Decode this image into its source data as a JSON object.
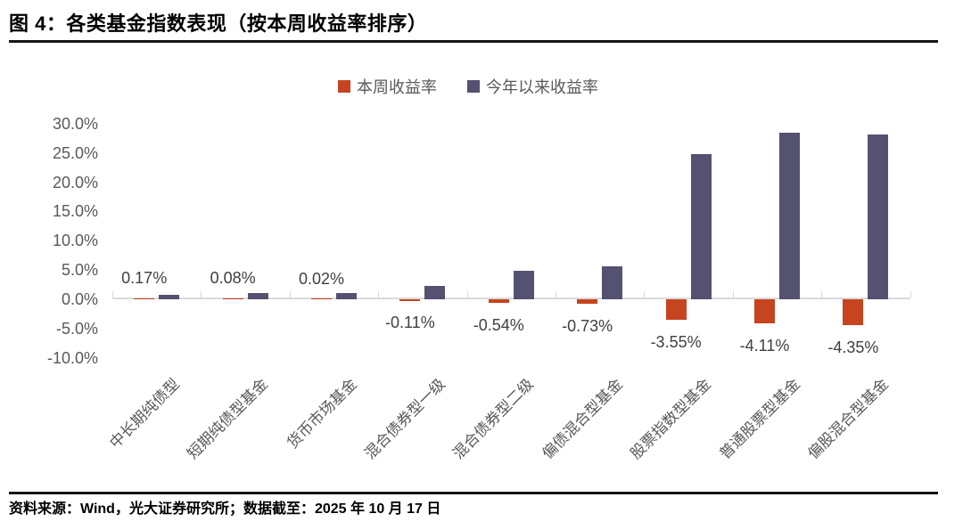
{
  "figure": {
    "title": "图 4：各类基金指数表现（按本周收益率排序）",
    "source_note": "资料来源：Wind，光大证券研究所；数据截至：2025 年 10 月 17 日"
  },
  "legend": {
    "position": "top-center",
    "items": [
      {
        "label": "本周收益率",
        "color": "#C6441F"
      },
      {
        "label": "今年以来收益率",
        "color": "#555171"
      }
    ]
  },
  "chart_data": {
    "type": "bar",
    "title": "各类基金指数表现（按本周收益率排序）",
    "categories": [
      "中长期纯债型",
      "短期纯债型基金",
      "货币市场基金",
      "混合债券型一级",
      "混合债券型二级",
      "偏债混合型基金",
      "股票指数型基金",
      "普通股票型基金",
      "偏股混合型基金"
    ],
    "series": [
      {
        "name": "本周收益率",
        "color": "#C6441F",
        "values": [
          0.17,
          0.08,
          0.02,
          -0.11,
          -0.54,
          -0.73,
          -3.55,
          -4.11,
          -4.35
        ],
        "data_labels": [
          "0.17%",
          "0.08%",
          "0.02%",
          "-0.11%",
          "-0.54%",
          "-0.73%",
          "-3.55%",
          "-4.11%",
          "-4.35%"
        ]
      },
      {
        "name": "今年以来收益率",
        "color": "#555171",
        "values": [
          0.8,
          1.1,
          1.1,
          2.3,
          4.9,
          5.7,
          24.8,
          28.4,
          28.1
        ],
        "data_labels": null
      }
    ],
    "xlabel": "",
    "ylabel": "",
    "ylim": [
      -10,
      30
    ],
    "ytick_labels": [
      "30.0%",
      "25.0%",
      "20.0%",
      "15.0%",
      "10.0%",
      "5.0%",
      "0.0%",
      "-5.0%",
      "-10.0%"
    ],
    "ytick_values": [
      30,
      25,
      20,
      15,
      10,
      5,
      0,
      -5,
      -10
    ],
    "grid": false,
    "legend_position": "top",
    "colors": {
      "axis_line": "#D9D9D9",
      "tick_label_text": "#595959",
      "data_label_text": "#404040",
      "title_text": "#000000"
    }
  }
}
